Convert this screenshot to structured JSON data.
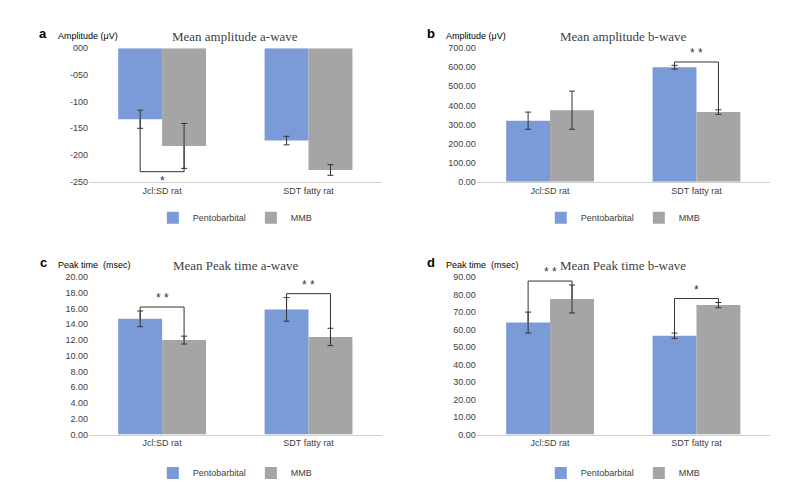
{
  "chart_data": [
    {
      "type": "bar",
      "panel_label": "a",
      "title": "Mean amplitude a-wave",
      "y_label": "Amplitude (μV)",
      "categories": [
        "Jcl:SD rat",
        "SDT fatty rat"
      ],
      "series": [
        {
          "name": "Pentobarbital",
          "color": "#7b9bd8",
          "values": [
            -133,
            -173
          ],
          "errors": [
            17,
            8
          ]
        },
        {
          "name": "MMB",
          "color": "#a5a5a5",
          "values": [
            -183,
            -228
          ],
          "errors": [
            42,
            10
          ]
        }
      ],
      "ylim": [
        -250,
        0
      ],
      "yticks": [
        {
          "value": 0,
          "label": "000"
        },
        {
          "value": -50,
          "label": "-050"
        },
        -100,
        -150,
        -200,
        -250
      ],
      "grid": false,
      "annotations": [
        {
          "text": "*",
          "category": "Jcl:SD rat"
        }
      ]
    },
    {
      "type": "bar",
      "panel_label": "b",
      "title": "Mean amplitude b-wave",
      "y_label": "Amplitude (μV)",
      "categories": [
        "Jcl:SD rat",
        "SDT fatty rat"
      ],
      "series": [
        {
          "name": "Pentobarbital",
          "color": "#7b9bd8",
          "values": [
            320,
            600
          ],
          "errors": [
            45,
            10
          ]
        },
        {
          "name": "MMB",
          "color": "#a5a5a5",
          "values": [
            375,
            365
          ],
          "errors": [
            100,
            12
          ]
        }
      ],
      "ylim": [
        0,
        700
      ],
      "yticks": [
        {
          "value": 0,
          "label": "0.00"
        },
        {
          "value": 100,
          "label": "100.00"
        },
        {
          "value": 200,
          "label": "200.00"
        },
        {
          "value": 300,
          "label": "300.00"
        },
        {
          "value": 400,
          "label": "400.00"
        },
        {
          "value": 500,
          "label": "500.00"
        },
        {
          "value": 600,
          "label": "600.00"
        },
        {
          "value": 700,
          "label": "700.00"
        }
      ],
      "grid": false,
      "annotations": [
        {
          "text": "* *",
          "category": "SDT fatty rat"
        }
      ]
    },
    {
      "type": "bar",
      "panel_label": "c",
      "title": "Mean Peak time a-wave",
      "y_label": "Peak time  (msec)",
      "categories": [
        "Jcl:SD rat",
        "SDT fatty rat"
      ],
      "series": [
        {
          "name": "Pentobarbital",
          "color": "#7b9bd8",
          "values": [
            14.7,
            15.9
          ],
          "errors": [
            1.0,
            1.5
          ]
        },
        {
          "name": "MMB",
          "color": "#a5a5a5",
          "values": [
            12.0,
            12.4
          ],
          "errors": [
            0.5,
            1.1
          ]
        }
      ],
      "ylim": [
        0,
        20
      ],
      "yticks": [
        {
          "value": 0,
          "label": "0.00"
        },
        {
          "value": 2,
          "label": "2.00"
        },
        {
          "value": 4,
          "label": "4.00"
        },
        {
          "value": 6,
          "label": "6.00"
        },
        {
          "value": 8,
          "label": "8.00"
        },
        {
          "value": 10,
          "label": "10.00"
        },
        {
          "value": 12,
          "label": "12.00"
        },
        {
          "value": 14,
          "label": "14.00"
        },
        {
          "value": 16,
          "label": "16.00"
        },
        {
          "value": 18,
          "label": "18.00"
        },
        {
          "value": 20,
          "label": "20.00"
        }
      ],
      "grid": false,
      "annotations": [
        {
          "text": "* *",
          "category": "Jcl:SD rat"
        },
        {
          "text": "* *",
          "category": "SDT fatty rat"
        }
      ]
    },
    {
      "type": "bar",
      "panel_label": "d",
      "title": "Mean Peak time b-wave",
      "y_label": "Peak time  (msec)",
      "categories": [
        "Jcl:SD rat",
        "SDT fatty rat"
      ],
      "series": [
        {
          "name": "Pentobarbital",
          "color": "#7b9bd8",
          "values": [
            64,
            56.5
          ],
          "errors": [
            6,
            1.5
          ]
        },
        {
          "name": "MMB",
          "color": "#a5a5a5",
          "values": [
            77.5,
            74
          ],
          "errors": [
            8,
            1.5
          ]
        }
      ],
      "ylim": [
        0,
        90
      ],
      "yticks": [
        {
          "value": 0,
          "label": "0.00"
        },
        {
          "value": 10,
          "label": "10.00"
        },
        {
          "value": 20,
          "label": "20.00"
        },
        {
          "value": 30,
          "label": "30.00"
        },
        {
          "value": 40,
          "label": "40.00"
        },
        {
          "value": 50,
          "label": "50.00"
        },
        {
          "value": 60,
          "label": "60.00"
        },
        {
          "value": 70,
          "label": "70.00"
        },
        {
          "value": 80,
          "label": "80.00"
        },
        {
          "value": 90,
          "label": "90.00"
        }
      ],
      "grid": false,
      "annotations": [
        {
          "text": "* *",
          "category": "Jcl:SD rat"
        },
        {
          "text": "*",
          "category": "SDT fatty rat"
        }
      ]
    }
  ]
}
